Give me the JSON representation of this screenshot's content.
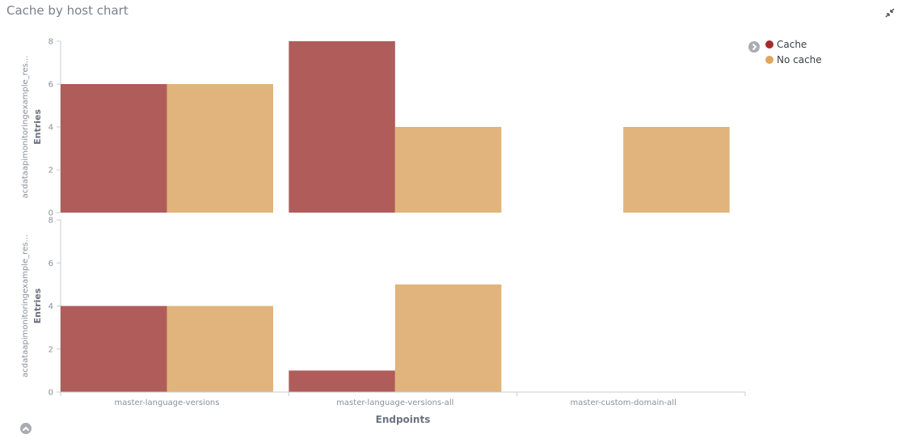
{
  "panel": {
    "title": "Cache by host chart"
  },
  "legend": {
    "items": [
      {
        "label": "Cache",
        "color": "#a52a2a"
      },
      {
        "label": "No cache",
        "color": "#e0a65a"
      }
    ]
  },
  "icons": {
    "minimize": "minimize-icon",
    "legend_toggle": "chevron-right-icon",
    "collapse": "chevron-up-icon"
  },
  "chart_data": {
    "type": "bar",
    "xlabel": "Endpoints",
    "categories": [
      "master-language-versions",
      "master-language-versions-all",
      "master-custom-domain-all"
    ],
    "colors": {
      "Cache": "#b05c5a",
      "No cache": "#e0b47c"
    },
    "grid": false,
    "legend_position": "top-right",
    "panels": [
      {
        "row_label": "acdataapimonitoringexample_res...",
        "ylabel": "Entries",
        "ylim": [
          0,
          8
        ],
        "yticks": [
          0,
          2,
          4,
          6,
          8
        ],
        "series": [
          {
            "name": "Cache",
            "values": [
              6,
              8,
              0
            ]
          },
          {
            "name": "No cache",
            "values": [
              6,
              4,
              4
            ]
          }
        ]
      },
      {
        "row_label": "acdataapimonitoringexample_res...",
        "ylabel": "Entries",
        "ylim": [
          0,
          8
        ],
        "yticks": [
          0,
          2,
          4,
          6,
          8
        ],
        "series": [
          {
            "name": "Cache",
            "values": [
              4,
              1,
              0
            ]
          },
          {
            "name": "No cache",
            "values": [
              4,
              5,
              0
            ]
          }
        ]
      }
    ]
  }
}
